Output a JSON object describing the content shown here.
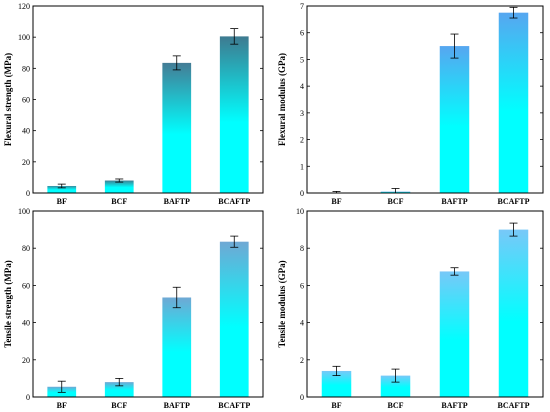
{
  "colors": {
    "bar_bottom": "#00ffff",
    "axis": "#000000",
    "error_bar": "#000000"
  },
  "chart_data": [
    {
      "type": "bar",
      "ylabel": "Flexural strength (MPa)",
      "categories": [
        "BF",
        "BCF",
        "BAFTP",
        "BCAFTP"
      ],
      "values": [
        4.5,
        8,
        83.5,
        100.5
      ],
      "errors": [
        1.2,
        1,
        4.5,
        5
      ],
      "ylim": [
        0,
        120
      ],
      "yticks": [
        "0",
        "20",
        "40",
        "60",
        "80",
        "100",
        "120"
      ],
      "bar_top_colors": [
        "#3a8a9e",
        "#3f7f93",
        "#447c95",
        "#3e7a90"
      ]
    },
    {
      "type": "bar",
      "ylabel": "Flexural modulus (GPa)",
      "categories": [
        "BF",
        "BCF",
        "BAFTP",
        "BCAFTP"
      ],
      "values": [
        0,
        0.05,
        5.5,
        6.75
      ],
      "errors": [
        0.06,
        0.12,
        0.45,
        0.2
      ],
      "ylim": [
        0,
        7
      ],
      "yticks": [
        "0",
        "1",
        "2",
        "3",
        "4",
        "5",
        "6",
        "7"
      ],
      "bar_top_colors": [
        "#57a6f0",
        "#57a6f0",
        "#57a6f0",
        "#57a6f0"
      ]
    },
    {
      "type": "bar",
      "ylabel": "Tensile strength (MPa)",
      "categories": [
        "BF",
        "BCF",
        "BAFTP",
        "BCAFTP"
      ],
      "values": [
        5.5,
        8,
        53.5,
        83.5
      ],
      "errors": [
        3,
        2,
        5.5,
        3
      ],
      "ylim": [
        0,
        100
      ],
      "yticks": [
        "0",
        "20",
        "40",
        "60",
        "80",
        "100"
      ],
      "bar_top_colors": [
        "#6fa8d4",
        "#6fa8d4",
        "#6fa8d4",
        "#6fa8d4"
      ]
    },
    {
      "type": "bar",
      "ylabel": "Tensile modulus (GPa)",
      "categories": [
        "BF",
        "BCF",
        "BAFTP",
        "BCAFTP"
      ],
      "values": [
        1.4,
        1.15,
        6.75,
        9
      ],
      "errors": [
        0.25,
        0.35,
        0.2,
        0.35
      ],
      "ylim": [
        0,
        10
      ],
      "yticks": [
        "0",
        "2",
        "4",
        "6",
        "8",
        "10"
      ],
      "bar_top_colors": [
        "#78c8f8",
        "#78c8f8",
        "#78c8f8",
        "#78c8f8"
      ]
    }
  ]
}
